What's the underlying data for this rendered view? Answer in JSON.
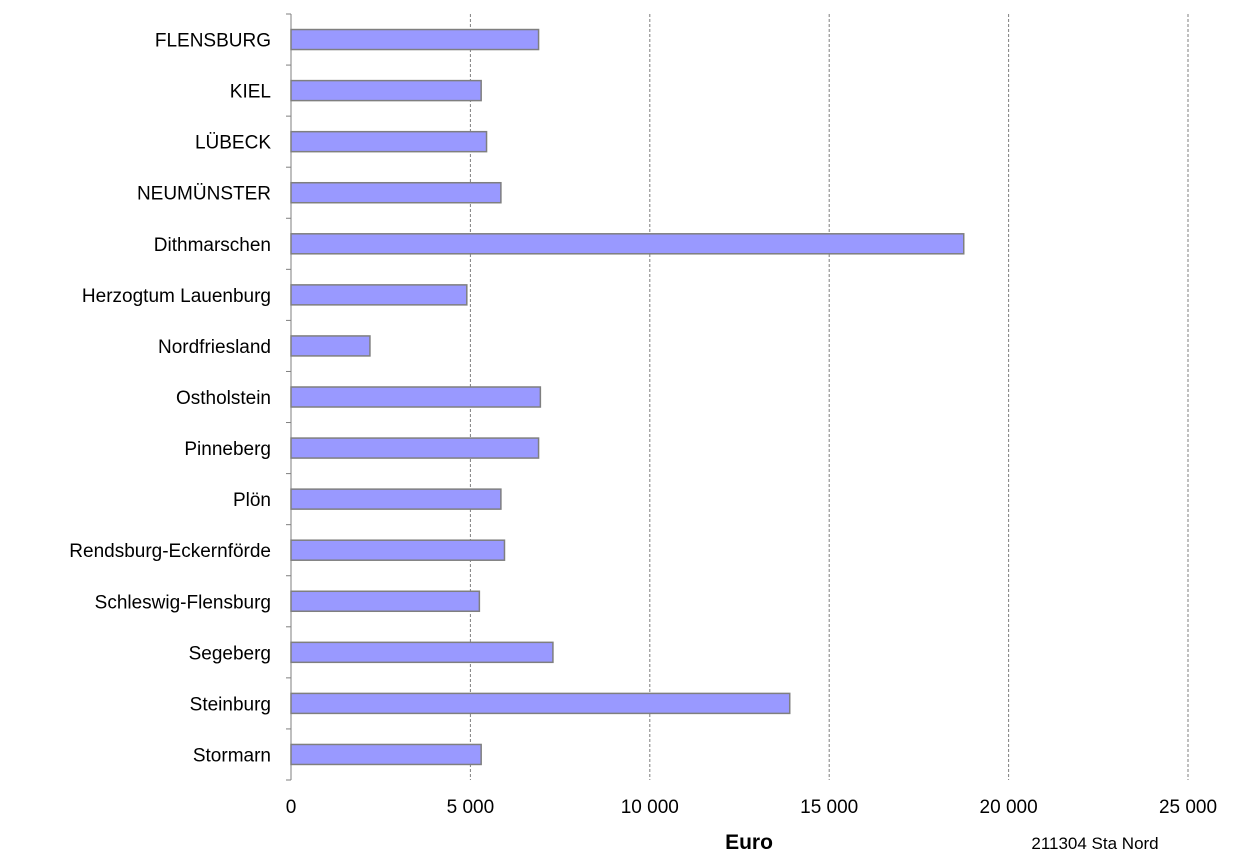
{
  "chart_data": {
    "type": "bar",
    "orientation": "horizontal",
    "categories": [
      "FLENSBURG",
      "KIEL",
      "LÜBECK",
      "NEUMÜNSTER",
      "Dithmarschen",
      "Herzogtum Lauenburg",
      "Nordfriesland",
      "Ostholstein",
      "Pinneberg",
      "Plön",
      "Rendsburg-Eckernförde",
      "Schleswig-Flensburg",
      "Segeberg",
      "Steinburg",
      "Stormarn"
    ],
    "values": [
      6900,
      5300,
      5450,
      5850,
      18750,
      4900,
      2200,
      6950,
      6900,
      5850,
      5950,
      5250,
      7300,
      13900,
      5300
    ],
    "xlabel": "Euro",
    "xlim": [
      0,
      25000
    ],
    "xticks": [
      0,
      5000,
      10000,
      15000,
      20000,
      25000
    ],
    "xtick_labels": [
      "0",
      "5 000",
      "10 000",
      "15 000",
      "20 000",
      "25 000"
    ],
    "grid": "vertical dashed",
    "bar_color": "#9999ff",
    "bar_edge_color": "#7f7f7f",
    "source_note": "211304 Sta Nord"
  }
}
